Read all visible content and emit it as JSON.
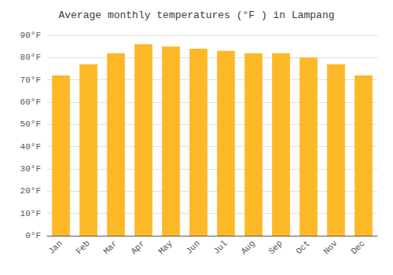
{
  "chart_data": {
    "type": "bar",
    "title": "Average monthly temperatures (°F ) in Lampang",
    "categories": [
      "Jan",
      "Feb",
      "Mar",
      "Apr",
      "May",
      "Jun",
      "Jul",
      "Aug",
      "Sep",
      "Oct",
      "Nov",
      "Dec"
    ],
    "values": [
      72,
      77,
      82,
      86,
      85,
      84,
      83,
      82,
      82,
      80,
      77,
      72
    ],
    "color": "#FDB827",
    "ylim": [
      0,
      90
    ],
    "yticks": [
      {
        "value": 0,
        "label": "0°F"
      },
      {
        "value": 10,
        "label": "10°F"
      },
      {
        "value": 20,
        "label": "20°F"
      },
      {
        "value": 30,
        "label": "30°F"
      },
      {
        "value": 40,
        "label": "40°F"
      },
      {
        "value": 50,
        "label": "50°F"
      },
      {
        "value": 60,
        "label": "60°F"
      },
      {
        "value": 70,
        "label": "70°F"
      },
      {
        "value": 80,
        "label": "80°F"
      },
      {
        "value": 90,
        "label": "90°F"
      }
    ],
    "grid": true
  }
}
